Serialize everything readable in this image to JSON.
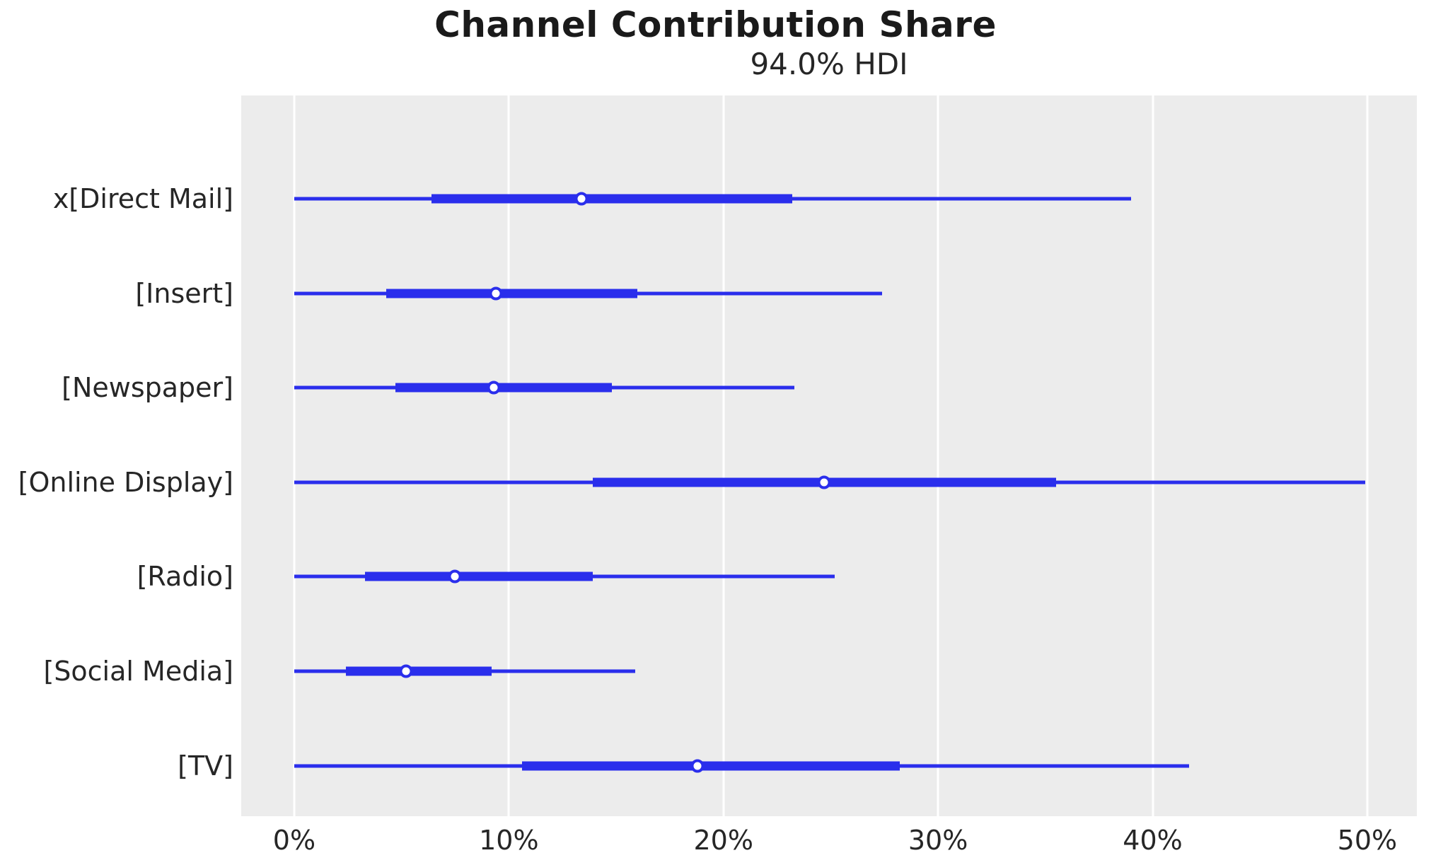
{
  "chart_data": {
    "type": "forest",
    "subtype": "interval / HDI forest plot (horizontal)",
    "title": "Channel Contribution Share",
    "subtitle": "94.0% HDI",
    "hdi_probability": "94.0%",
    "value_unit": "percent share",
    "xlabel": "",
    "ylabel": "",
    "x_ticks": [
      "0%",
      "10%",
      "20%",
      "30%",
      "40%",
      "50%"
    ],
    "x_tick_values": [
      0,
      10,
      20,
      30,
      40,
      50
    ],
    "xlim": [
      -2.47,
      52.31
    ],
    "grid": "vertical white gridlines on gray panel",
    "legend": "none",
    "series": [
      {
        "label": "x[Direct Mail]",
        "hdi_94": [
          0.0,
          39.0
        ],
        "interquartile": [
          6.4,
          23.2
        ],
        "median": 13.4
      },
      {
        "label": "[Insert]",
        "hdi_94": [
          0.0,
          27.4
        ],
        "interquartile": [
          4.3,
          16.0
        ],
        "median": 9.4
      },
      {
        "label": "[Newspaper]",
        "hdi_94": [
          0.0,
          23.3
        ],
        "interquartile": [
          4.7,
          14.8
        ],
        "median": 9.3
      },
      {
        "label": "[Online Display]",
        "hdi_94": [
          0.0,
          49.9
        ],
        "interquartile": [
          13.9,
          35.5
        ],
        "median": 24.7
      },
      {
        "label": "[Radio]",
        "hdi_94": [
          0.0,
          25.2
        ],
        "interquartile": [
          3.3,
          13.9
        ],
        "median": 7.5
      },
      {
        "label": "[Social Media]",
        "hdi_94": [
          0.0,
          15.9
        ],
        "interquartile": [
          2.4,
          9.2
        ],
        "median": 5.2
      },
      {
        "label": "[TV]",
        "hdi_94": [
          0.0,
          41.7
        ],
        "interquartile": [
          10.6,
          28.2
        ],
        "median": 18.8
      }
    ]
  },
  "colors": {
    "interval": "#2A2EEC",
    "marker_fill": "#FFFFFF",
    "plot_background": "#ECECEC",
    "gridline": "#FFFFFF",
    "text": "#262626"
  }
}
